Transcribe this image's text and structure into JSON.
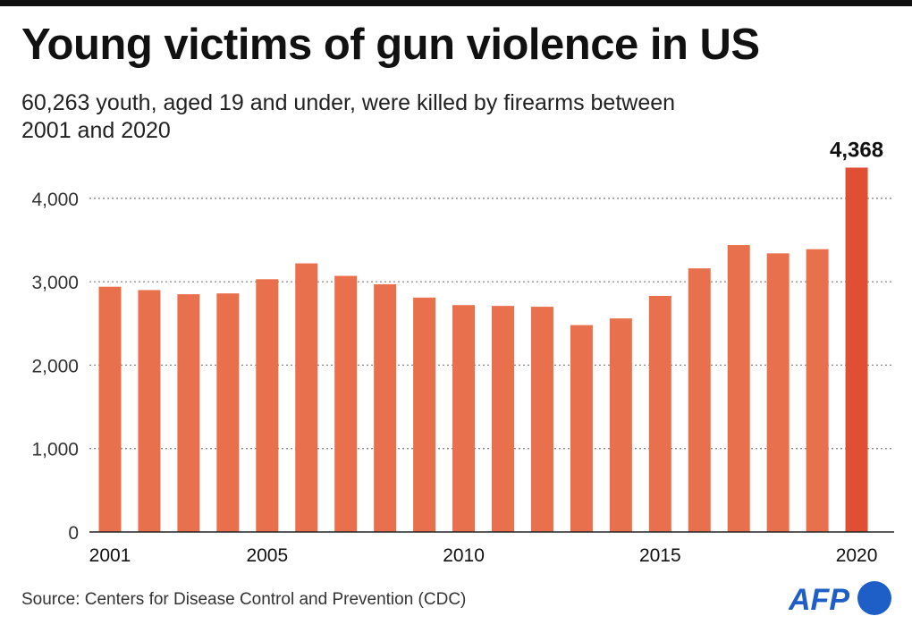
{
  "header": {
    "title": "Young victims of gun violence in US",
    "subtitle": "60,263 youth, aged 19 and under, were killed by firearms between 2001 and 2020"
  },
  "footer": {
    "source": "Source: Centers for Disease Control and Prevention (CDC)",
    "logo_text": "AFP"
  },
  "colors": {
    "bar": "#e8704d",
    "highlight": "#e04e33",
    "logo": "#1d5ec7"
  },
  "chart_data": {
    "type": "bar",
    "categories": [
      "2001",
      "2002",
      "2003",
      "2004",
      "2005",
      "2006",
      "2007",
      "2008",
      "2009",
      "2010",
      "2011",
      "2012",
      "2013",
      "2014",
      "2015",
      "2016",
      "2017",
      "2018",
      "2019",
      "2020"
    ],
    "values": [
      2940,
      2900,
      2850,
      2860,
      3030,
      3220,
      3070,
      2970,
      2810,
      2720,
      2710,
      2700,
      2480,
      2560,
      2830,
      3160,
      3440,
      3340,
      3390,
      4368
    ],
    "x_tick_labels": [
      "2001",
      "2005",
      "2010",
      "2015",
      "2020"
    ],
    "y_ticks": [
      0,
      1000,
      2000,
      3000,
      4000
    ],
    "y_tick_labels": [
      "0",
      "1,000",
      "2,000",
      "3,000",
      "4,000"
    ],
    "ylim": [
      0,
      4368
    ],
    "grid": "horizontal dotted",
    "annotation": {
      "category": "2020",
      "label": "4,368"
    },
    "title": "",
    "xlabel": "",
    "ylabel": ""
  }
}
